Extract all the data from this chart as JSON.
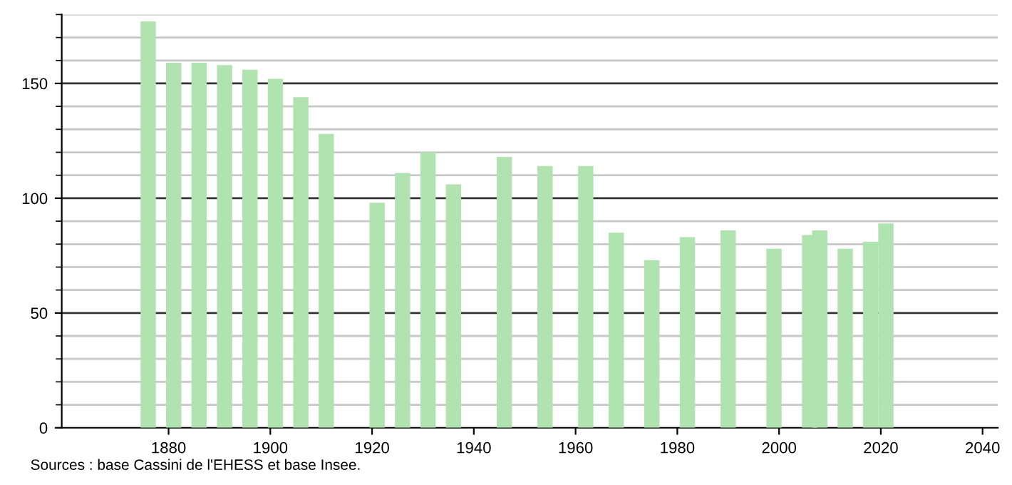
{
  "chart_data": {
    "type": "bar",
    "x": [
      1876,
      1881,
      1886,
      1891,
      1896,
      1901,
      1906,
      1911,
      1921,
      1926,
      1931,
      1936,
      1946,
      1954,
      1962,
      1968,
      1975,
      1982,
      1990,
      1999,
      2006,
      2008,
      2013,
      2018,
      2021
    ],
    "values": [
      177,
      159,
      159,
      158,
      156,
      152,
      144,
      128,
      98,
      111,
      120,
      106,
      118,
      114,
      114,
      85,
      73,
      83,
      86,
      78,
      84,
      86,
      78,
      81,
      89
    ],
    "color": "#b0e3b0",
    "xlim": [
      1859,
      2043
    ],
    "xticks": [
      1880,
      1900,
      1920,
      1940,
      1960,
      1980,
      2000,
      2020,
      2040
    ],
    "ylim": [
      0,
      180
    ],
    "yticks": [
      0,
      50,
      100,
      150
    ],
    "grid": "y",
    "annotations": [
      "Sources : base Cassini de l'EHESS et base Insee."
    ]
  }
}
